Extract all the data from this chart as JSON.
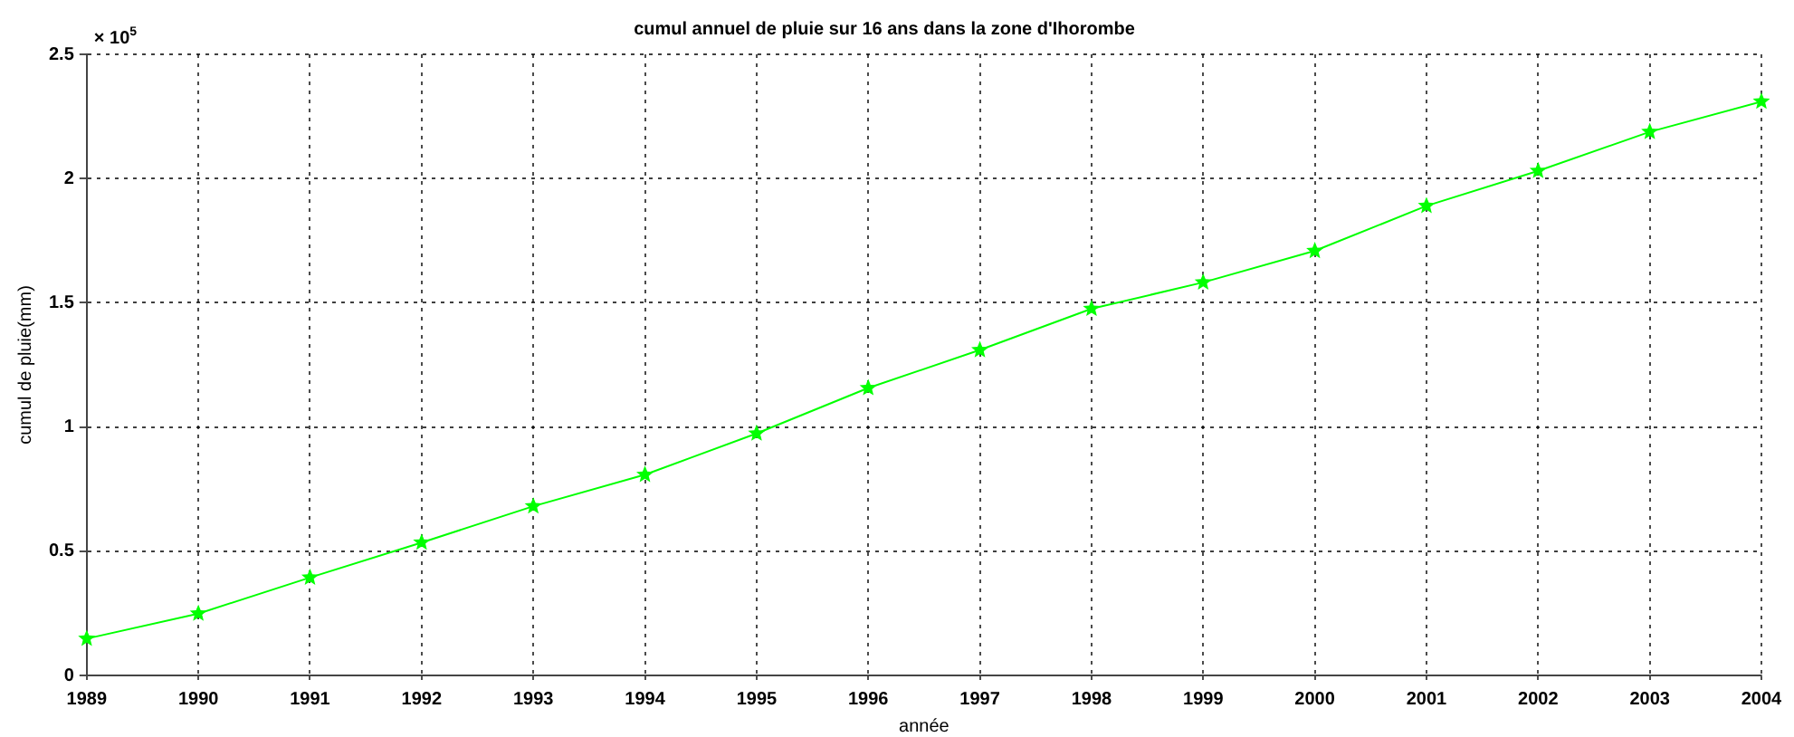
{
  "chart_data": {
    "type": "line",
    "title": "cumul annuel de pluie sur 16 ans dans la zone d'Ihorombe",
    "xlabel": "année",
    "ylabel": "cumul de pluie(mm)",
    "annotations": [
      "× 10$^{5}$"
    ],
    "x": [
      1989,
      1990,
      1991,
      1992,
      1993,
      1994,
      1995,
      1996,
      1997,
      1998,
      1999,
      2000,
      2001,
      2002,
      2003,
      2004
    ],
    "series": [
      {
        "color": "#00ff00",
        "values": [
          0.148,
          0.249,
          0.394,
          0.535,
          0.681,
          0.808,
          0.974,
          1.157,
          1.31,
          1.476,
          1.582,
          1.709,
          1.89,
          2.031,
          2.188,
          2.31
        ]
      }
    ],
    "xlim": [
      1989,
      2004
    ],
    "xticks": [
      1989,
      1990,
      1991,
      1992,
      1993,
      1994,
      1995,
      1996,
      1997,
      1998,
      1999,
      2000,
      2001,
      2002,
      2003,
      2004
    ],
    "ylim": [
      0,
      2.5
    ],
    "yticks": [
      0,
      0.5,
      1,
      1.5,
      2,
      2.5
    ],
    "grid": true,
    "legend": false,
    "marker": "star",
    "line_style": "solid"
  }
}
